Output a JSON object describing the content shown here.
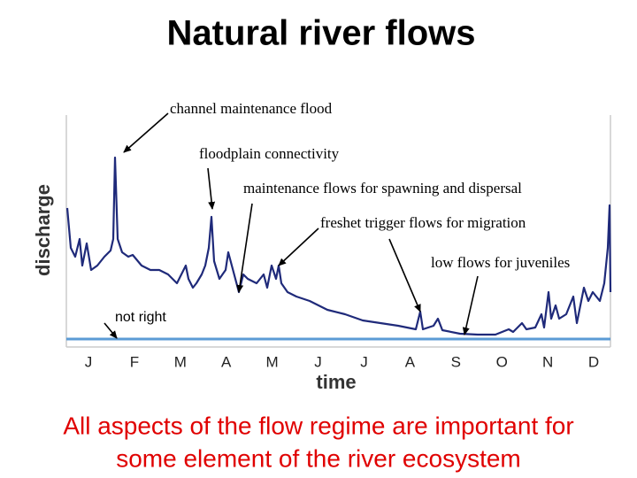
{
  "title": "Natural river flows",
  "chart": {
    "y_label": "discharge",
    "x_label": "time",
    "months": [
      "J",
      "F",
      "M",
      "A",
      "M",
      "J",
      "J",
      "A",
      "S",
      "O",
      "N",
      "D"
    ]
  },
  "annotations": [
    "channel maintenance flood",
    "floodplain connectivity",
    "maintenance flows for spawning and dispersal",
    "freshet trigger flows for migration",
    "low flows for juveniles",
    "not right"
  ],
  "footer": [
    "All aspects of the flow regime are important for",
    "some element of the river ecosystem"
  ]
}
